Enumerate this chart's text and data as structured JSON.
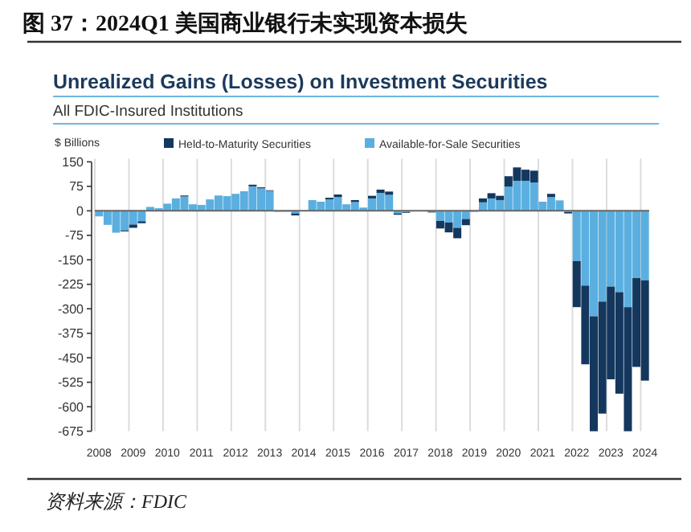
{
  "chart_data": {
    "type": "bar",
    "title": "Unrealized Gains (Losses) on Investment Securities",
    "subtitle": "All FDIC-Insured Institutions",
    "ylabel": "$ Billions",
    "annotations": [
      "图 37：2024Q1 美国商业银行未实现资本损失",
      "资料来源：FDIC"
    ],
    "categories": [
      "2008",
      null,
      null,
      null,
      "2009",
      null,
      null,
      null,
      "2010",
      null,
      null,
      null,
      "2011",
      null,
      null,
      null,
      "2012",
      null,
      null,
      null,
      "2013",
      null,
      null,
      null,
      "2014",
      null,
      null,
      null,
      "2015",
      null,
      null,
      null,
      "2016",
      null,
      null,
      null,
      "2017",
      null,
      null,
      null,
      "2018",
      null,
      null,
      null,
      "2019",
      null,
      null,
      null,
      "2020",
      null,
      null,
      null,
      "2021",
      null,
      null,
      null,
      "2022",
      null,
      null,
      null,
      "2023",
      null,
      null,
      null,
      "2024"
    ],
    "stacked": true,
    "series": [
      {
        "name": "Available-for-Sale Securities",
        "color": "#5aafe0",
        "values": [
          -17,
          -43,
          -67,
          -60,
          -42,
          -32,
          12,
          8,
          22,
          38,
          44,
          20,
          18,
          35,
          47,
          45,
          52,
          60,
          75,
          69,
          61,
          -3,
          -3,
          -8,
          null,
          33,
          28,
          35,
          42,
          20,
          27,
          10,
          38,
          55,
          49,
          -8,
          -4,
          0,
          null,
          -3,
          -31,
          -36,
          -52,
          -25,
          -3,
          26,
          38,
          33,
          74,
          92,
          92,
          87,
          28,
          42,
          32,
          -4,
          -154,
          -229,
          -323,
          -278,
          -232,
          -249,
          -295,
          -206,
          -213
        ]
      },
      {
        "name": "Held-to-Maturity Securities",
        "color": "#14375e",
        "values": [
          0,
          0,
          0,
          -3,
          -10,
          -6,
          0,
          0,
          0,
          0,
          3,
          0,
          0,
          0,
          0,
          0,
          0,
          0,
          5,
          3,
          2,
          0,
          0,
          -6,
          0,
          0,
          0,
          5,
          8,
          0,
          6,
          0,
          8,
          10,
          10,
          -4,
          -2,
          0,
          0,
          -2,
          -23,
          -30,
          -32,
          -19,
          0,
          12,
          16,
          13,
          32,
          41,
          34,
          36,
          0,
          10,
          0,
          -4,
          -141,
          -241,
          -352,
          -343,
          -284,
          -311,
          -380,
          -272,
          -307
        ]
      }
    ],
    "ylim": [
      -675,
      150
    ],
    "yticks": [
      150,
      75,
      0,
      -75,
      -150,
      -225,
      -300,
      -375,
      -450,
      -525,
      -600,
      -675
    ],
    "grid": "x",
    "legend": "top"
  }
}
